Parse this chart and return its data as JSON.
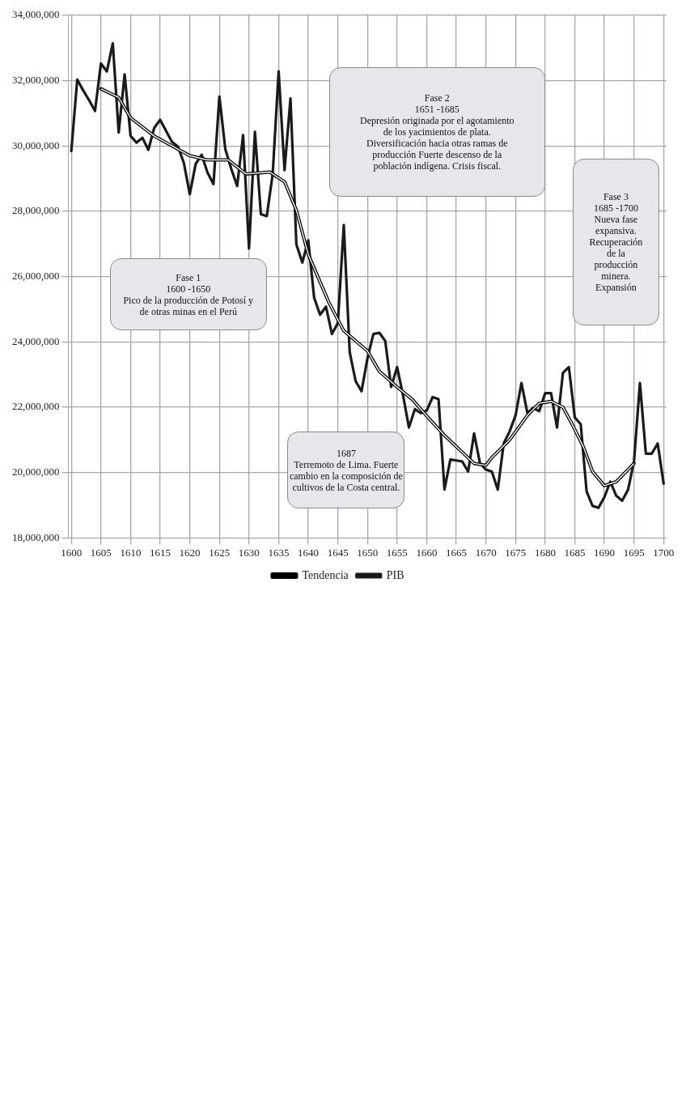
{
  "chart_data": {
    "type": "line",
    "xlim": [
      1599.5,
      1700.5
    ],
    "xticks": [
      1600,
      1605,
      1610,
      1615,
      1620,
      1625,
      1630,
      1635,
      1640,
      1645,
      1650,
      1655,
      1660,
      1665,
      1670,
      1675,
      1680,
      1685,
      1690,
      1695,
      1700
    ],
    "ylim": [
      18000000,
      34000000
    ],
    "yticks": [
      {
        "value": 18000000,
        "label": "18,000,000"
      },
      {
        "value": 20000000,
        "label": "20,000,000"
      },
      {
        "value": 22000000,
        "label": "22,000,000"
      },
      {
        "value": 24000000,
        "label": "24,000,000"
      },
      {
        "value": 26000000,
        "label": "26,000,000"
      },
      {
        "value": 28000000,
        "label": "28,000,000"
      },
      {
        "value": 30000000,
        "label": "30,000,000"
      },
      {
        "value": 32000000,
        "label": "32,000,000"
      },
      {
        "value": 34000000,
        "label": "34,000,000"
      }
    ],
    "grid": true,
    "legend": "bottom",
    "marker": "none",
    "series": [
      {
        "name": "Tendencia",
        "color": "#000000",
        "x": [
          1605,
          1608,
          1610,
          1614,
          1617,
          1620,
          1623,
          1626.5,
          1629.5,
          1633.5,
          1636,
          1638,
          1640,
          1643.5,
          1646,
          1650,
          1652,
          1655,
          1657.5,
          1660.5,
          1663,
          1668,
          1670,
          1671,
          1674,
          1677,
          1679,
          1681,
          1683,
          1684.5,
          1686.5,
          1688,
          1690,
          1692,
          1695
        ],
        "values": [
          31750000,
          31480000,
          30860000,
          30300000,
          30000000,
          29700000,
          29570000,
          29570000,
          29140000,
          29200000,
          28900000,
          28030000,
          26680000,
          25200000,
          24340000,
          23720000,
          23100000,
          22620000,
          22250000,
          21630000,
          21140000,
          20280000,
          20220000,
          20460000,
          21000000,
          21750000,
          22120000,
          22180000,
          22000000,
          21500000,
          20770000,
          20030000,
          19600000,
          19720000,
          20280000
        ]
      },
      {
        "name": "PIB",
        "color": "#1a1a1a",
        "x": [
          1600,
          1601,
          1602,
          1603,
          1604,
          1605,
          1606,
          1607,
          1608,
          1609,
          1610,
          1611,
          1612,
          1613,
          1614,
          1615,
          1616,
          1617,
          1618,
          1619,
          1620,
          1621,
          1622,
          1623,
          1624,
          1625,
          1626,
          1627,
          1628,
          1629,
          1630,
          1631,
          1632,
          1633,
          1634,
          1635,
          1636,
          1637,
          1638,
          1639,
          1640,
          1641,
          1642,
          1643,
          1644,
          1645,
          1646,
          1647,
          1648,
          1649,
          1650,
          1651,
          1652,
          1653,
          1654,
          1655,
          1656,
          1657,
          1658,
          1659,
          1660,
          1661,
          1662,
          1663,
          1664,
          1665,
          1666,
          1667,
          1668,
          1669,
          1670,
          1671,
          1672,
          1673,
          1674,
          1675,
          1676,
          1677,
          1678,
          1679,
          1680,
          1681,
          1682,
          1683,
          1684,
          1685,
          1686,
          1687,
          1688,
          1689,
          1690,
          1691,
          1692,
          1693,
          1694,
          1695,
          1696,
          1697,
          1698,
          1699,
          1700
        ],
        "values": [
          29840000,
          32030000,
          31700000,
          31400000,
          31070000,
          32520000,
          32280000,
          33140000,
          30410000,
          32190000,
          30310000,
          30100000,
          30250000,
          29880000,
          30550000,
          30800000,
          30460000,
          30120000,
          29980000,
          29480000,
          28520000,
          29450000,
          29730000,
          29180000,
          28830000,
          31510000,
          29900000,
          29300000,
          28770000,
          30330000,
          26860000,
          30430000,
          27910000,
          27850000,
          29140000,
          32280000,
          29260000,
          31450000,
          26980000,
          26430000,
          27110000,
          25350000,
          24830000,
          25080000,
          24240000,
          24580000,
          27580000,
          23690000,
          22800000,
          22490000,
          23500000,
          24240000,
          24280000,
          24030000,
          22620000,
          23230000,
          22370000,
          21380000,
          21940000,
          21820000,
          21900000,
          22310000,
          22250000,
          19480000,
          20400000,
          20370000,
          20340000,
          20030000,
          21200000,
          20280000,
          20090000,
          20030000,
          19480000,
          20890000,
          21260000,
          21750000,
          22740000,
          21820000,
          21980000,
          21880000,
          22430000,
          22430000,
          21380000,
          23050000,
          23230000,
          21690000,
          21480000,
          19420000,
          18980000,
          18920000,
          19250000,
          19720000,
          19290000,
          19140000,
          19480000,
          20340000,
          22740000,
          20580000,
          20580000,
          20890000,
          19660000
        ]
      }
    ],
    "annotations": [
      "Fase 1\n1600 -1650\nPico de la producción de Potosí y\nde otras minas en el Perú",
      "Fase 2\n1651 -1685\nDepresión originada por el agotamiento\nde los yacimientos de plata.\nDiversificación hacia otras ramas de\nproducción Fuerte descenso de la\npoblación indígena. Crisis fiscal.",
      "Fase 3\n1685 -1700\nNueva fase\nexpansiva.\nRecuperación\nde la\nproducción\nminera.\nExpansión",
      "1687\nTerremoto de Lima. Fuerte\ncambio en la composición de\ncultivos de la Costa central."
    ]
  }
}
